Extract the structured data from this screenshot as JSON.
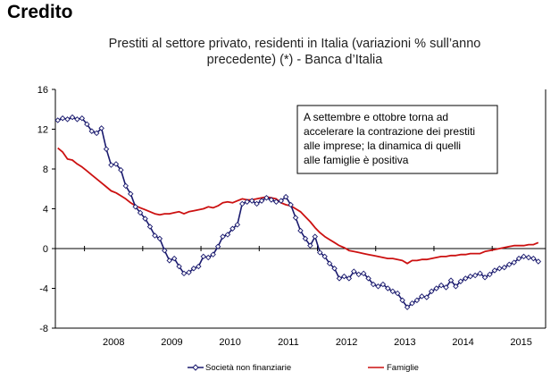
{
  "heading": "Credito",
  "chart_data": {
    "type": "line",
    "title_lines": [
      "Prestiti al settore privato, residenti in Italia (variazioni % sull’anno",
      "precedente) (*) - Banca d’Italia"
    ],
    "x_categories": [
      "2008",
      "2009",
      "2010",
      "2011",
      "2012",
      "2013",
      "2014",
      "2015"
    ],
    "y_ticks": [
      "16",
      "12",
      "8",
      "4",
      "0",
      "-4",
      "-8"
    ],
    "ylim": [
      -8,
      16
    ],
    "xlim": [
      2007.5,
      2015.917
    ],
    "grid": false,
    "legend_position": "bottom",
    "annotation_lines": [
      "A settembre e ottobre torna ad",
      "accelerare la contrazione dei prestiti",
      "alle imprese; la dinamica di quelli",
      "alle famiglie è positiva"
    ],
    "series": [
      {
        "name": "Società non finanziarie",
        "color": "#1a1a6e",
        "marker": "diamond",
        "x": [
          2007.542,
          2007.625,
          2007.708,
          2007.792,
          2007.875,
          2007.958,
          2008.042,
          2008.125,
          2008.208,
          2008.292,
          2008.375,
          2008.458,
          2008.542,
          2008.625,
          2008.708,
          2008.792,
          2008.875,
          2008.958,
          2009.042,
          2009.125,
          2009.208,
          2009.292,
          2009.375,
          2009.458,
          2009.542,
          2009.625,
          2009.708,
          2009.792,
          2009.875,
          2009.958,
          2010.042,
          2010.125,
          2010.208,
          2010.292,
          2010.375,
          2010.458,
          2010.542,
          2010.625,
          2010.708,
          2010.792,
          2010.875,
          2010.958,
          2011.042,
          2011.125,
          2011.208,
          2011.292,
          2011.375,
          2011.458,
          2011.542,
          2011.625,
          2011.708,
          2011.792,
          2011.875,
          2011.958,
          2012.042,
          2012.125,
          2012.208,
          2012.292,
          2012.375,
          2012.458,
          2012.542,
          2012.625,
          2012.708,
          2012.792,
          2012.875,
          2012.958,
          2013.042,
          2013.125,
          2013.208,
          2013.292,
          2013.375,
          2013.458,
          2013.542,
          2013.625,
          2013.708,
          2013.792,
          2013.875,
          2013.958,
          2014.042,
          2014.125,
          2014.208,
          2014.292,
          2014.375,
          2014.458,
          2014.542,
          2014.625,
          2014.708,
          2014.792,
          2014.875,
          2014.958,
          2015.042,
          2015.125,
          2015.208,
          2015.292,
          2015.375,
          2015.458,
          2015.542,
          2015.625,
          2015.708,
          2015.792
        ],
        "values": [
          12.9,
          13.1,
          13.0,
          13.2,
          13.0,
          13.1,
          12.5,
          11.8,
          11.6,
          12.1,
          10.0,
          8.4,
          8.5,
          7.9,
          6.3,
          5.5,
          4.2,
          3.6,
          3.0,
          2.2,
          1.3,
          1.0,
          -0.2,
          -1.2,
          -1.0,
          -1.8,
          -2.5,
          -2.4,
          -2.0,
          -1.8,
          -0.8,
          -0.9,
          -0.6,
          0.2,
          1.2,
          1.4,
          2.0,
          2.4,
          4.5,
          4.7,
          4.8,
          4.5,
          4.8,
          5.1,
          4.9,
          4.7,
          4.8,
          5.2,
          4.4,
          3.1,
          1.8,
          1.0,
          0.3,
          1.2,
          -0.4,
          -0.8,
          -1.5,
          -2.0,
          -3.0,
          -2.8,
          -3.0,
          -2.3,
          -2.6,
          -2.5,
          -3.0,
          -3.6,
          -3.8,
          -3.6,
          -4.0,
          -4.3,
          -4.5,
          -5.2,
          -5.9,
          -5.5,
          -5.2,
          -4.8,
          -4.9,
          -4.3,
          -4.0,
          -3.7,
          -3.9,
          -3.2,
          -3.8,
          -3.3,
          -3.0,
          -2.8,
          -2.7,
          -2.5,
          -2.9,
          -2.6,
          -2.2,
          -2.0,
          -1.9,
          -1.6,
          -1.4,
          -1.0,
          -0.8,
          -0.9,
          -1.0,
          -1.3
        ]
      },
      {
        "name": "Famiglie",
        "color": "#cc1111",
        "marker": "none",
        "x": [
          2007.542,
          2007.625,
          2007.708,
          2007.792,
          2007.875,
          2007.958,
          2008.042,
          2008.125,
          2008.208,
          2008.292,
          2008.375,
          2008.458,
          2008.542,
          2008.625,
          2008.708,
          2008.792,
          2008.875,
          2008.958,
          2009.042,
          2009.125,
          2009.208,
          2009.292,
          2009.375,
          2009.458,
          2009.542,
          2009.625,
          2009.708,
          2009.792,
          2009.875,
          2009.958,
          2010.042,
          2010.125,
          2010.208,
          2010.292,
          2010.375,
          2010.458,
          2010.542,
          2010.625,
          2010.708,
          2010.792,
          2010.875,
          2010.958,
          2011.042,
          2011.125,
          2011.208,
          2011.292,
          2011.375,
          2011.458,
          2011.542,
          2011.625,
          2011.708,
          2011.792,
          2011.875,
          2011.958,
          2012.042,
          2012.125,
          2012.208,
          2012.292,
          2012.375,
          2012.458,
          2012.542,
          2012.625,
          2012.708,
          2012.792,
          2012.875,
          2012.958,
          2013.042,
          2013.125,
          2013.208,
          2013.292,
          2013.375,
          2013.458,
          2013.542,
          2013.625,
          2013.708,
          2013.792,
          2013.875,
          2013.958,
          2014.042,
          2014.125,
          2014.208,
          2014.292,
          2014.375,
          2014.458,
          2014.542,
          2014.625,
          2014.708,
          2014.792,
          2014.875,
          2014.958,
          2015.042,
          2015.125,
          2015.208,
          2015.292,
          2015.375,
          2015.458,
          2015.542,
          2015.625,
          2015.708,
          2015.792
        ],
        "values": [
          10.1,
          9.7,
          9.0,
          8.9,
          8.5,
          8.2,
          7.8,
          7.4,
          7.0,
          6.6,
          6.2,
          5.8,
          5.6,
          5.3,
          5.0,
          4.6,
          4.3,
          4.1,
          3.9,
          3.7,
          3.5,
          3.4,
          3.5,
          3.5,
          3.6,
          3.7,
          3.5,
          3.7,
          3.8,
          3.9,
          4.0,
          4.2,
          4.1,
          4.3,
          4.6,
          4.7,
          4.6,
          4.8,
          5.0,
          4.9,
          4.9,
          5.0,
          5.1,
          5.2,
          5.1,
          5.0,
          4.6,
          4.4,
          4.3,
          4.0,
          3.7,
          3.2,
          2.7,
          2.1,
          1.6,
          1.2,
          0.9,
          0.6,
          0.3,
          0.1,
          -0.2,
          -0.3,
          -0.4,
          -0.5,
          -0.6,
          -0.7,
          -0.8,
          -0.9,
          -1.0,
          -1.0,
          -1.1,
          -1.2,
          -1.5,
          -1.2,
          -1.2,
          -1.1,
          -1.1,
          -1.0,
          -0.9,
          -0.8,
          -0.8,
          -0.7,
          -0.7,
          -0.6,
          -0.6,
          -0.5,
          -0.5,
          -0.5,
          -0.3,
          -0.2,
          -0.1,
          0.0,
          0.1,
          0.2,
          0.3,
          0.3,
          0.3,
          0.4,
          0.4,
          0.6
        ]
      }
    ]
  }
}
